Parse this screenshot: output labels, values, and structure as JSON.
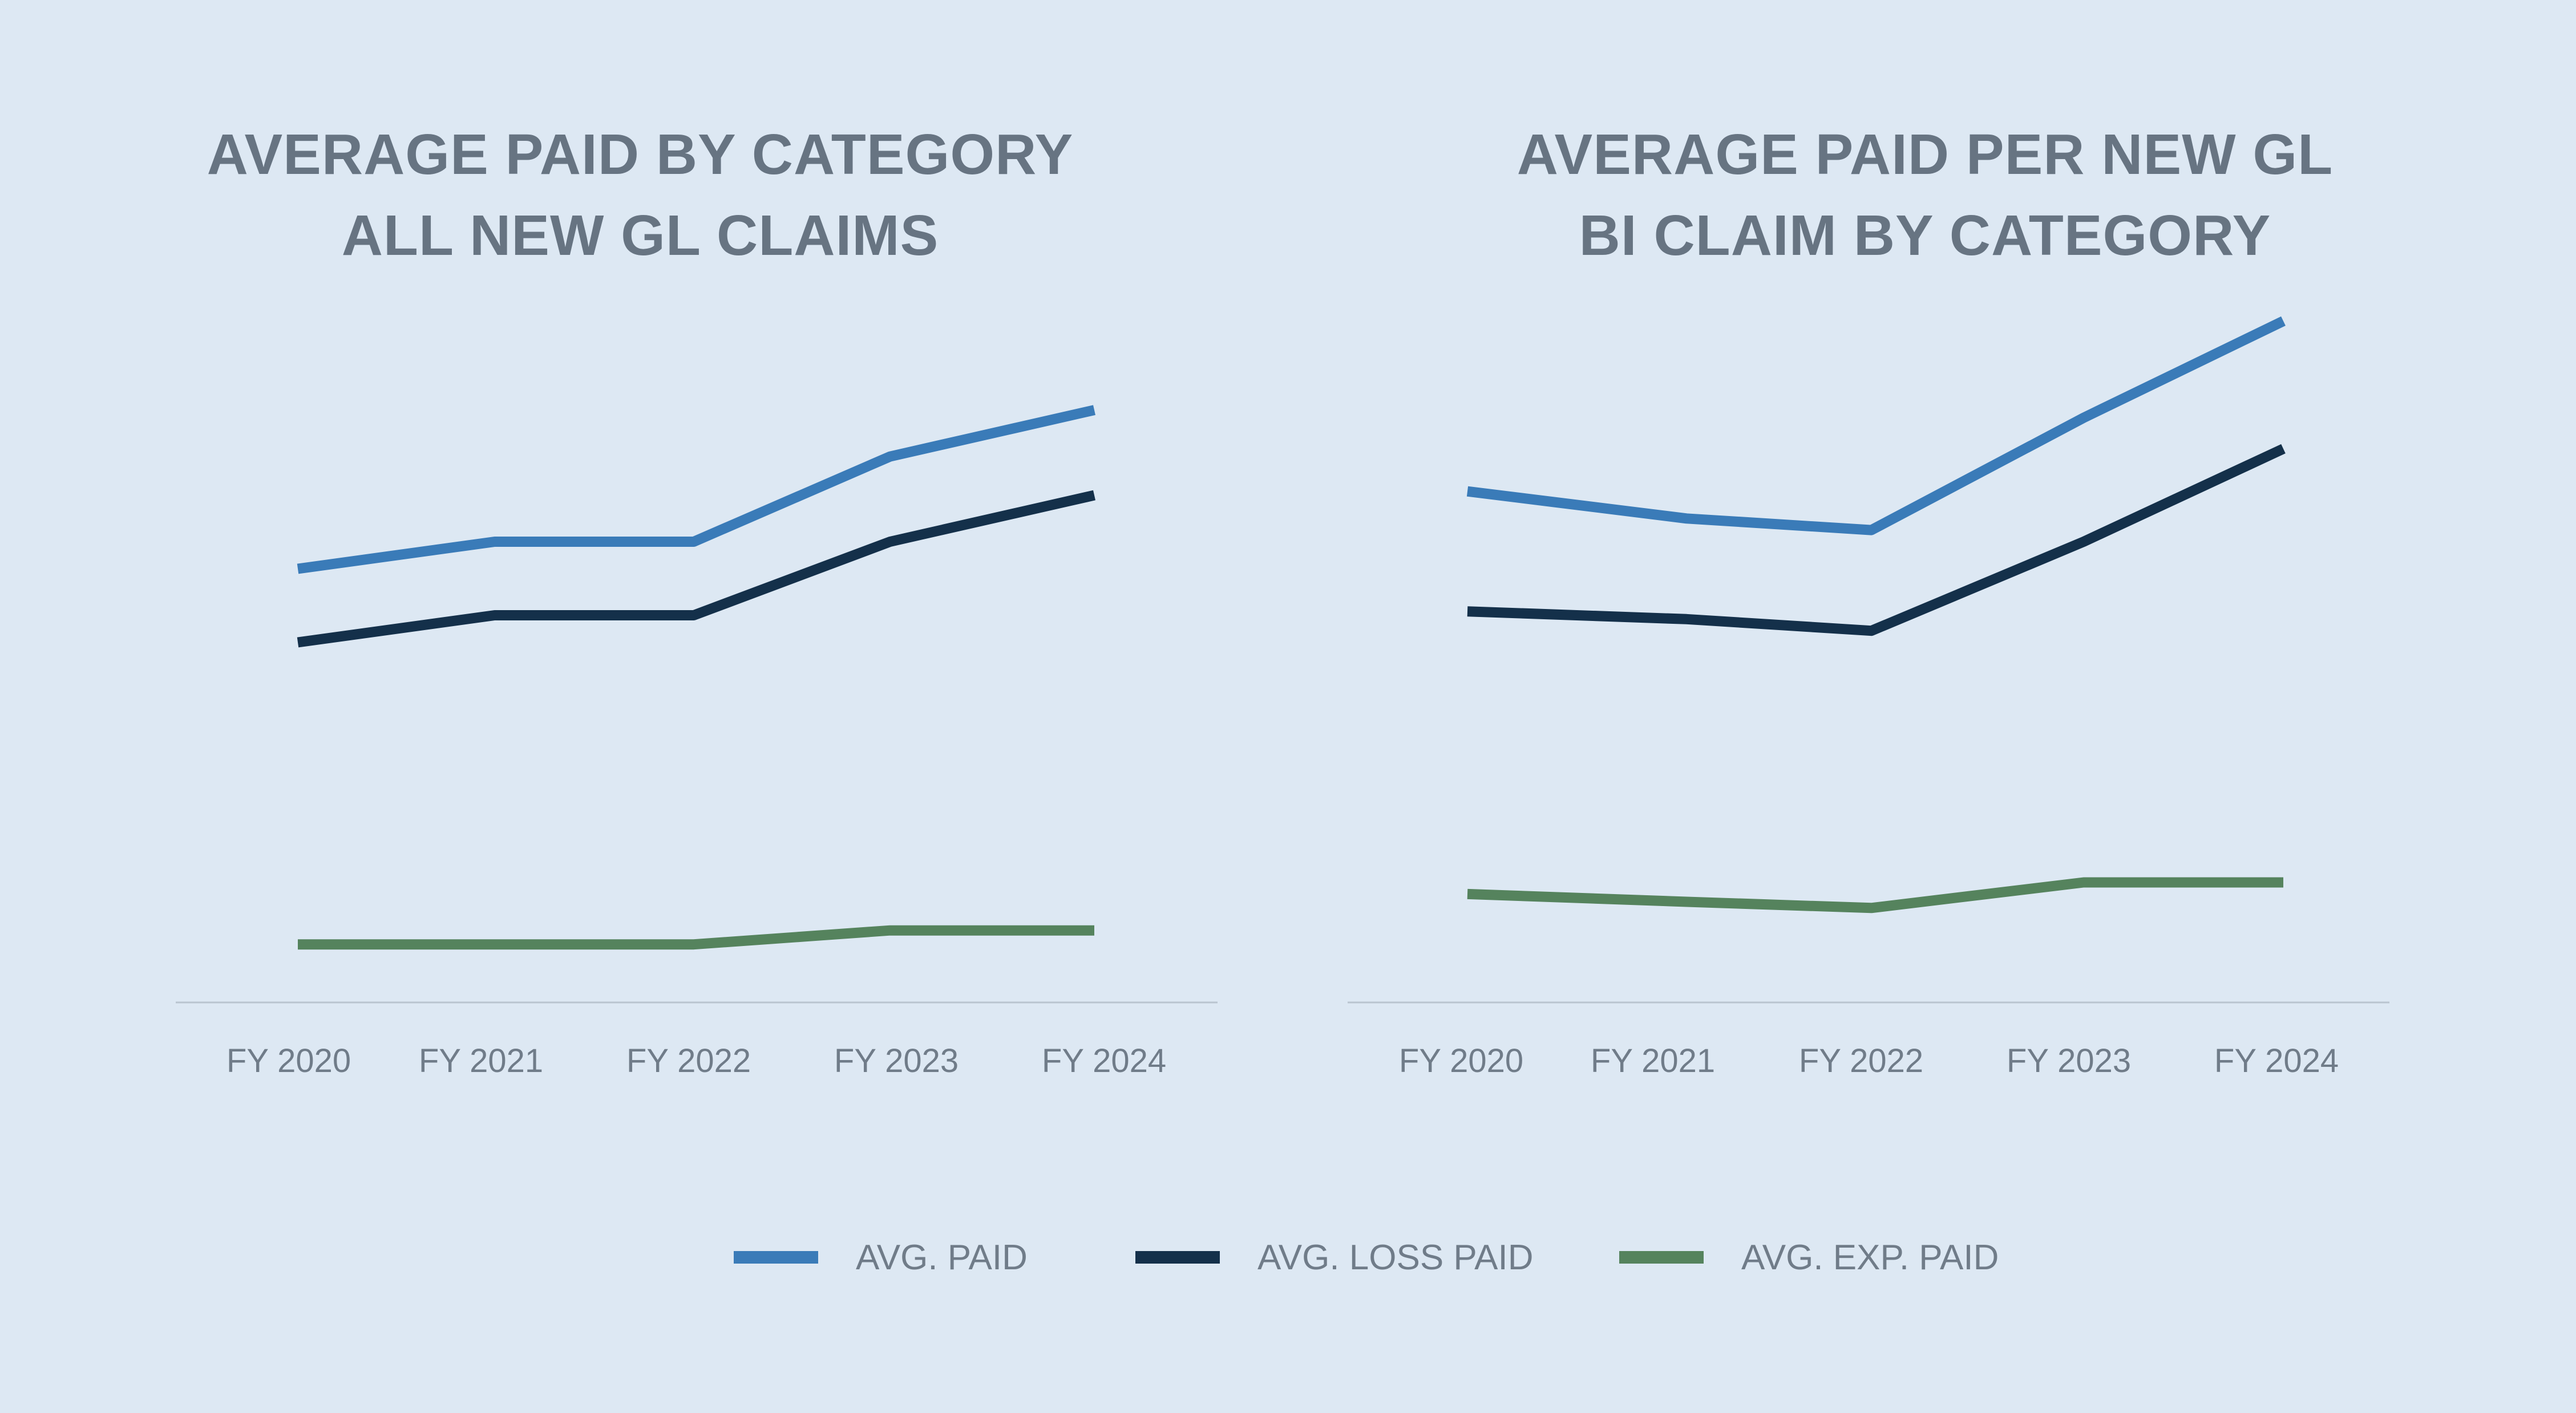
{
  "legend": [
    {
      "name": "AVG. PAID",
      "color": "#3a7bb8"
    },
    {
      "name": "AVG. LOSS PAID",
      "color": "#14304a"
    },
    {
      "name": "AVG. EXP. PAID",
      "color": "#55835d"
    }
  ],
  "chart_data": [
    {
      "type": "line",
      "title_lines": [
        "AVERAGE PAID BY CATEGORY",
        "ALL NEW GL CLAIMS"
      ],
      "categories": [
        "FY 2020",
        "FY 2021",
        "FY 2022",
        "FY 2023",
        "FY 2024"
      ],
      "xlabel": "",
      "ylabel": "",
      "ylim": [
        0,
        100
      ],
      "grid": false,
      "legend_position": "bottom",
      "series": [
        {
          "name": "AVG. PAID",
          "color": "#3a7bb8",
          "values": [
            56,
            59.5,
            59.5,
            70.5,
            76.5
          ]
        },
        {
          "name": "AVG. LOSS PAID",
          "color": "#14304a",
          "values": [
            46.5,
            50,
            50,
            59.5,
            65.5
          ]
        },
        {
          "name": "AVG. EXP. PAID",
          "color": "#55835d",
          "values": [
            7.5,
            7.5,
            7.5,
            9.3,
            9.3
          ]
        }
      ]
    },
    {
      "type": "line",
      "title_lines": [
        "AVERAGE PAID PER NEW GL",
        "BI CLAIM BY CATEGORY"
      ],
      "categories": [
        "FY 2020",
        "FY 2021",
        "FY 2022",
        "FY 2023",
        "FY 2024"
      ],
      "xlabel": "",
      "ylabel": "",
      "ylim": [
        0,
        100
      ],
      "grid": false,
      "legend_position": "bottom",
      "series": [
        {
          "name": "AVG. PAID",
          "color": "#3a7bb8",
          "values": [
            66,
            62.5,
            61,
            75.5,
            88
          ]
        },
        {
          "name": "AVG. LOSS PAID",
          "color": "#14304a",
          "values": [
            50.5,
            49.5,
            48,
            59.5,
            71.5
          ]
        },
        {
          "name": "AVG. EXP. PAID",
          "color": "#55835d",
          "values": [
            14,
            13,
            12.2,
            15.5,
            15.5
          ]
        }
      ]
    }
  ]
}
